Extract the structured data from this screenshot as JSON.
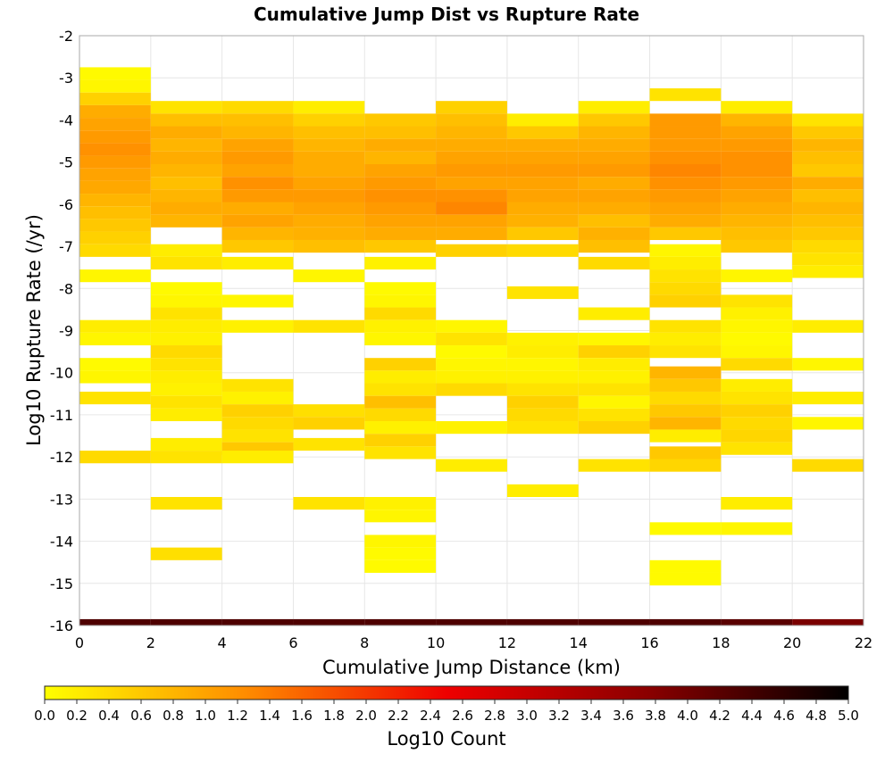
{
  "chart_data": {
    "type": "heatmap",
    "title": "Cumulative Jump Dist vs Rupture Rate",
    "xlabel": "Cumulative Jump Distance (km)",
    "ylabel": "Log10 Rupture Rate (/yr)",
    "xlim": [
      0,
      22
    ],
    "ylim": [
      -16,
      -2
    ],
    "x_ticks": [
      0,
      2,
      4,
      6,
      8,
      10,
      12,
      14,
      16,
      18,
      20,
      22
    ],
    "y_ticks": [
      -2,
      -3,
      -4,
      -5,
      -6,
      -7,
      -8,
      -9,
      -10,
      -11,
      -12,
      -13,
      -14,
      -15,
      -16
    ],
    "x_bin_width": 2,
    "y_bin_height": 0.3,
    "grid": true,
    "colorbar": {
      "label": "Log10 Count",
      "min": 0.0,
      "max": 5.0,
      "ticks": [
        "0.0",
        "0.2",
        "0.4",
        "0.6",
        "0.8",
        "1.0",
        "1.2",
        "1.4",
        "1.6",
        "1.8",
        "2.0",
        "2.2",
        "2.4",
        "2.6",
        "2.8",
        "3.0",
        "3.2",
        "3.4",
        "3.6",
        "3.8",
        "4.0",
        "4.2",
        "4.4",
        "4.6",
        "4.8",
        "5.0"
      ],
      "colors": [
        "#ffff00",
        "#ff8c00",
        "#ee0000",
        "#8b0000",
        "#000000"
      ],
      "placement": "bottom"
    },
    "columns": [
      {
        "x": 1,
        "cells": [
          [
            -2.9,
            0.05
          ],
          [
            -3.2,
            0.1
          ],
          [
            -3.5,
            0.5
          ],
          [
            -3.8,
            0.9
          ],
          [
            -4.1,
            1.0
          ],
          [
            -4.4,
            1.1
          ],
          [
            -4.7,
            1.2
          ],
          [
            -5.0,
            1.1
          ],
          [
            -5.3,
            1.0
          ],
          [
            -5.6,
            0.95
          ],
          [
            -5.9,
            0.8
          ],
          [
            -6.2,
            0.7
          ],
          [
            -6.5,
            0.6
          ],
          [
            -6.8,
            0.5
          ],
          [
            -7.1,
            0.4
          ],
          [
            -7.7,
            0.1
          ],
          [
            -8.9,
            0.2
          ],
          [
            -9.2,
            0.1
          ],
          [
            -9.8,
            0.05
          ],
          [
            -10.1,
            0.1
          ],
          [
            -10.6,
            0.3
          ],
          [
            -12.0,
            0.4
          ]
        ]
      },
      {
        "x": 3,
        "cells": [
          [
            -3.7,
            0.3
          ],
          [
            -4.0,
            0.7
          ],
          [
            -4.3,
            0.9
          ],
          [
            -4.6,
            0.8
          ],
          [
            -4.9,
            0.9
          ],
          [
            -5.2,
            0.8
          ],
          [
            -5.5,
            0.7
          ],
          [
            -5.8,
            0.8
          ],
          [
            -6.1,
            0.9
          ],
          [
            -6.4,
            0.8
          ],
          [
            -7.1,
            0.2
          ],
          [
            -7.4,
            0.3
          ],
          [
            -8.0,
            0.05
          ],
          [
            -8.3,
            0.1
          ],
          [
            -8.6,
            0.3
          ],
          [
            -8.9,
            0.2
          ],
          [
            -9.2,
            0.15
          ],
          [
            -9.5,
            0.4
          ],
          [
            -9.8,
            0.3
          ],
          [
            -10.1,
            0.2
          ],
          [
            -10.4,
            0.15
          ],
          [
            -10.7,
            0.3
          ],
          [
            -11.0,
            0.2
          ],
          [
            -11.7,
            0.2
          ],
          [
            -12.0,
            0.3
          ],
          [
            -13.1,
            0.3
          ],
          [
            -14.3,
            0.35
          ]
        ]
      },
      {
        "x": 5,
        "cells": [
          [
            -3.7,
            0.4
          ],
          [
            -4.0,
            0.7
          ],
          [
            -4.3,
            0.8
          ],
          [
            -4.6,
            1.0
          ],
          [
            -4.9,
            1.1
          ],
          [
            -5.2,
            1.0
          ],
          [
            -5.5,
            1.2
          ],
          [
            -5.8,
            1.1
          ],
          [
            -6.1,
            0.9
          ],
          [
            -6.4,
            1.0
          ],
          [
            -6.7,
            0.8
          ],
          [
            -7.0,
            0.6
          ],
          [
            -7.4,
            0.2
          ],
          [
            -8.3,
            0.1
          ],
          [
            -8.9,
            0.15
          ],
          [
            -10.3,
            0.3
          ],
          [
            -10.6,
            0.15
          ],
          [
            -10.9,
            0.5
          ],
          [
            -11.2,
            0.4
          ],
          [
            -11.5,
            0.3
          ],
          [
            -11.8,
            0.6
          ],
          [
            -12.0,
            0.2
          ]
        ]
      },
      {
        "x": 7,
        "cells": [
          [
            -3.7,
            0.2
          ],
          [
            -4.0,
            0.5
          ],
          [
            -4.3,
            0.7
          ],
          [
            -4.6,
            0.8
          ],
          [
            -4.9,
            0.9
          ],
          [
            -5.2,
            0.9
          ],
          [
            -5.5,
            1.0
          ],
          [
            -5.8,
            1.1
          ],
          [
            -6.1,
            1.0
          ],
          [
            -6.4,
            0.9
          ],
          [
            -6.7,
            0.85
          ],
          [
            -7.0,
            0.7
          ],
          [
            -7.7,
            0.1
          ],
          [
            -8.9,
            0.3
          ],
          [
            -10.9,
            0.35
          ],
          [
            -11.2,
            0.5
          ],
          [
            -11.7,
            0.3
          ],
          [
            -13.1,
            0.3
          ]
        ]
      },
      {
        "x": 9,
        "cells": [
          [
            -4.0,
            0.6
          ],
          [
            -4.3,
            0.7
          ],
          [
            -4.6,
            0.9
          ],
          [
            -4.9,
            0.8
          ],
          [
            -5.2,
            1.0
          ],
          [
            -5.5,
            1.1
          ],
          [
            -5.8,
            1.2
          ],
          [
            -6.1,
            1.1
          ],
          [
            -6.4,
            1.0
          ],
          [
            -6.7,
            0.9
          ],
          [
            -7.0,
            0.6
          ],
          [
            -7.4,
            0.15
          ],
          [
            -8.0,
            0.05
          ],
          [
            -8.3,
            0.1
          ],
          [
            -8.6,
            0.4
          ],
          [
            -8.9,
            0.15
          ],
          [
            -9.2,
            0.1
          ],
          [
            -9.8,
            0.5
          ],
          [
            -10.1,
            0.2
          ],
          [
            -10.4,
            0.3
          ],
          [
            -10.7,
            0.7
          ],
          [
            -11.0,
            0.4
          ],
          [
            -11.3,
            0.15
          ],
          [
            -11.6,
            0.5
          ],
          [
            -11.9,
            0.3
          ],
          [
            -13.1,
            0.15
          ],
          [
            -13.4,
            0.1
          ],
          [
            -14.0,
            0.1
          ],
          [
            -14.3,
            0.05
          ],
          [
            -14.6,
            0.05
          ]
        ]
      },
      {
        "x": 11,
        "cells": [
          [
            -3.7,
            0.5
          ],
          [
            -4.0,
            0.7
          ],
          [
            -4.3,
            0.8
          ],
          [
            -4.6,
            0.9
          ],
          [
            -4.9,
            1.0
          ],
          [
            -5.2,
            1.1
          ],
          [
            -5.5,
            1.0
          ],
          [
            -5.8,
            1.2
          ],
          [
            -6.1,
            1.3
          ],
          [
            -6.4,
            1.0
          ],
          [
            -6.7,
            0.9
          ],
          [
            -7.1,
            0.5
          ],
          [
            -8.9,
            0.1
          ],
          [
            -9.2,
            0.3
          ],
          [
            -9.5,
            0.05
          ],
          [
            -9.8,
            0.1
          ],
          [
            -10.1,
            0.15
          ],
          [
            -10.4,
            0.4
          ],
          [
            -11.3,
            0.15
          ],
          [
            -12.2,
            0.2
          ]
        ]
      },
      {
        "x": 13,
        "cells": [
          [
            -4.0,
            0.2
          ],
          [
            -4.3,
            0.6
          ],
          [
            -4.6,
            0.9
          ],
          [
            -4.9,
            1.0
          ],
          [
            -5.2,
            1.1
          ],
          [
            -5.5,
            1.0
          ],
          [
            -5.8,
            1.0
          ],
          [
            -6.1,
            0.9
          ],
          [
            -6.4,
            0.85
          ],
          [
            -6.7,
            0.6
          ],
          [
            -7.1,
            0.4
          ],
          [
            -8.1,
            0.3
          ],
          [
            -9.2,
            0.15
          ],
          [
            -9.5,
            0.2
          ],
          [
            -9.8,
            0.1
          ],
          [
            -10.1,
            0.15
          ],
          [
            -10.4,
            0.3
          ],
          [
            -10.7,
            0.5
          ],
          [
            -11.0,
            0.4
          ],
          [
            -11.3,
            0.3
          ],
          [
            -12.8,
            0.2
          ]
        ]
      },
      {
        "x": 15,
        "cells": [
          [
            -3.7,
            0.2
          ],
          [
            -4.0,
            0.6
          ],
          [
            -4.3,
            0.8
          ],
          [
            -4.6,
            0.9
          ],
          [
            -4.9,
            1.0
          ],
          [
            -5.2,
            1.1
          ],
          [
            -5.5,
            0.9
          ],
          [
            -5.8,
            1.0
          ],
          [
            -6.1,
            0.9
          ],
          [
            -6.4,
            0.7
          ],
          [
            -6.7,
            0.85
          ],
          [
            -7.0,
            0.7
          ],
          [
            -7.4,
            0.4
          ],
          [
            -8.6,
            0.2
          ],
          [
            -9.2,
            0.1
          ],
          [
            -9.5,
            0.5
          ],
          [
            -9.8,
            0.2
          ],
          [
            -10.1,
            0.15
          ],
          [
            -10.4,
            0.3
          ],
          [
            -10.7,
            0.1
          ],
          [
            -11.0,
            0.3
          ],
          [
            -11.3,
            0.5
          ],
          [
            -12.2,
            0.3
          ]
        ]
      },
      {
        "x": 17,
        "cells": [
          [
            -3.4,
            0.3
          ],
          [
            -4.0,
            1.1
          ],
          [
            -4.3,
            1.1
          ],
          [
            -4.6,
            1.1
          ],
          [
            -4.9,
            1.2
          ],
          [
            -5.2,
            1.3
          ],
          [
            -5.5,
            1.2
          ],
          [
            -5.8,
            1.1
          ],
          [
            -6.1,
            1.0
          ],
          [
            -6.4,
            0.9
          ],
          [
            -6.7,
            0.6
          ],
          [
            -7.1,
            0.1
          ],
          [
            -7.4,
            0.2
          ],
          [
            -7.7,
            0.3
          ],
          [
            -8.0,
            0.4
          ],
          [
            -8.3,
            0.5
          ],
          [
            -8.9,
            0.3
          ],
          [
            -9.2,
            0.2
          ],
          [
            -9.5,
            0.3
          ],
          [
            -10.0,
            0.8
          ],
          [
            -10.3,
            0.6
          ],
          [
            -10.6,
            0.4
          ],
          [
            -10.9,
            0.6
          ],
          [
            -11.2,
            0.8
          ],
          [
            -11.5,
            0.2
          ],
          [
            -11.9,
            0.6
          ],
          [
            -12.2,
            0.45
          ],
          [
            -13.7,
            0.05
          ],
          [
            -14.6,
            0.05
          ],
          [
            -14.9,
            0.05
          ]
        ]
      },
      {
        "x": 19,
        "cells": [
          [
            -3.7,
            0.2
          ],
          [
            -4.0,
            0.8
          ],
          [
            -4.3,
            1.0
          ],
          [
            -4.6,
            1.1
          ],
          [
            -4.9,
            1.2
          ],
          [
            -5.2,
            1.2
          ],
          [
            -5.5,
            1.1
          ],
          [
            -5.8,
            1.0
          ],
          [
            -6.1,
            0.9
          ],
          [
            -6.4,
            0.8
          ],
          [
            -6.7,
            0.7
          ],
          [
            -7.0,
            0.6
          ],
          [
            -7.7,
            0.1
          ],
          [
            -8.3,
            0.3
          ],
          [
            -8.6,
            0.15
          ],
          [
            -8.9,
            0.1
          ],
          [
            -9.2,
            0.05
          ],
          [
            -9.5,
            0.1
          ],
          [
            -9.8,
            0.4
          ],
          [
            -10.3,
            0.2
          ],
          [
            -10.6,
            0.3
          ],
          [
            -10.9,
            0.5
          ],
          [
            -11.2,
            0.4
          ],
          [
            -11.5,
            0.45
          ],
          [
            -11.8,
            0.3
          ],
          [
            -13.1,
            0.2
          ],
          [
            -13.7,
            0.1
          ]
        ]
      },
      {
        "x": 21,
        "cells": [
          [
            -4.0,
            0.3
          ],
          [
            -4.3,
            0.6
          ],
          [
            -4.6,
            0.8
          ],
          [
            -4.9,
            0.7
          ],
          [
            -5.2,
            0.6
          ],
          [
            -5.5,
            0.9
          ],
          [
            -5.8,
            0.7
          ],
          [
            -6.1,
            0.8
          ],
          [
            -6.4,
            0.7
          ],
          [
            -6.7,
            0.6
          ],
          [
            -7.0,
            0.4
          ],
          [
            -7.3,
            0.3
          ],
          [
            -7.6,
            0.2
          ],
          [
            -8.9,
            0.2
          ],
          [
            -9.8,
            0.1
          ],
          [
            -10.6,
            0.2
          ],
          [
            -11.2,
            0.1
          ],
          [
            -12.2,
            0.4
          ]
        ]
      }
    ],
    "bottom_row": {
      "y": -16,
      "values": [
        4.3,
        4.3,
        4.3,
        4.3,
        4.3,
        4.3,
        4.3,
        4.3,
        4.3,
        4.2,
        3.9
      ]
    }
  }
}
